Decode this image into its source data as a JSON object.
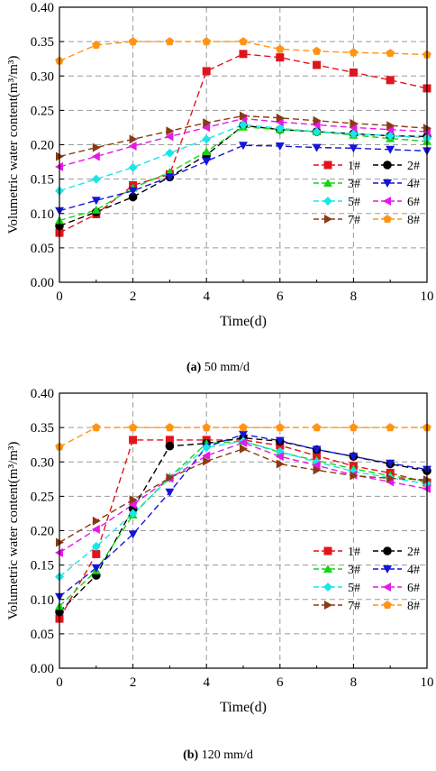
{
  "charts": [
    {
      "caption_letter": "(a)",
      "caption_text": " 50 mm/d",
      "chart_data": {
        "type": "line",
        "title": "",
        "xlabel": "Time(d)",
        "ylabel": "Volumetric water content(m³/m³)",
        "xlim": [
          0,
          10
        ],
        "ylim": [
          0,
          0.4
        ],
        "xticks": [
          "0",
          "2",
          "4",
          "6",
          "8",
          "10"
        ],
        "yticks": [
          "0.00",
          "0.05",
          "0.10",
          "0.15",
          "0.20",
          "0.25",
          "0.30",
          "0.35",
          "0.40"
        ],
        "grid": true,
        "legend_position": "bottom-right",
        "x": [
          0,
          1,
          2,
          3,
          4,
          5,
          6,
          7,
          8,
          9,
          10
        ],
        "series": [
          {
            "name": "1#",
            "color": "#e0141e",
            "marker": "square",
            "values": [
              0.072,
              0.099,
              0.141,
              0.157,
              0.307,
              0.332,
              0.327,
              0.316,
              0.305,
              0.294,
              0.282
            ]
          },
          {
            "name": "2#",
            "color": "#000000",
            "marker": "circle",
            "values": [
              0.082,
              0.102,
              0.124,
              0.153,
              0.185,
              0.228,
              0.222,
              0.219,
              0.216,
              0.213,
              0.212
            ]
          },
          {
            "name": "3#",
            "color": "#15d415",
            "marker": "triangle-up",
            "values": [
              0.09,
              0.105,
              0.137,
              0.16,
              0.19,
              0.226,
              0.222,
              0.219,
              0.214,
              0.209,
              0.205
            ]
          },
          {
            "name": "4#",
            "color": "#1515d8",
            "marker": "triangle-down",
            "values": [
              0.104,
              0.119,
              0.133,
              0.153,
              0.176,
              0.199,
              0.198,
              0.196,
              0.195,
              0.193,
              0.191
            ]
          },
          {
            "name": "5#",
            "color": "#19e6e6",
            "marker": "diamond",
            "values": [
              0.133,
              0.15,
              0.167,
              0.188,
              0.208,
              0.229,
              0.224,
              0.219,
              0.216,
              0.213,
              0.21
            ]
          },
          {
            "name": "6#",
            "color": "#e619e6",
            "marker": "triangle-left",
            "values": [
              0.168,
              0.183,
              0.198,
              0.212,
              0.225,
              0.238,
              0.233,
              0.229,
              0.225,
              0.222,
              0.219
            ]
          },
          {
            "name": "7#",
            "color": "#8b3a12",
            "marker": "triangle-right",
            "values": [
              0.183,
              0.196,
              0.208,
              0.22,
              0.232,
              0.242,
              0.239,
              0.235,
              0.231,
              0.228,
              0.224
            ]
          },
          {
            "name": "8#",
            "color": "#ff9414",
            "marker": "pentagon",
            "values": [
              0.322,
              0.345,
              0.35,
              0.35,
              0.35,
              0.35,
              0.339,
              0.336,
              0.334,
              0.333,
              0.331
            ]
          }
        ]
      }
    },
    {
      "caption_letter": "(b)",
      "caption_text": " 120 mm/d",
      "chart_data": {
        "type": "line",
        "title": "",
        "xlabel": "Time(d)",
        "ylabel": "Volumetric water content(m³/m³)",
        "xlim": [
          0,
          10
        ],
        "ylim": [
          0,
          0.4
        ],
        "xticks": [
          "0",
          "2",
          "4",
          "6",
          "8",
          "10"
        ],
        "yticks": [
          "0.00",
          "0.05",
          "0.10",
          "0.15",
          "0.20",
          "0.25",
          "0.30",
          "0.35",
          "0.40"
        ],
        "grid": true,
        "legend_position": "bottom-right",
        "x": [
          0,
          1,
          2,
          3,
          4,
          5,
          6,
          7,
          8,
          9,
          10
        ],
        "series": [
          {
            "name": "1#",
            "color": "#e0141e",
            "marker": "square",
            "values": [
              0.072,
              0.166,
              0.332,
              0.332,
              0.332,
              0.332,
              0.324,
              0.309,
              0.294,
              0.284,
              0.27
            ]
          },
          {
            "name": "2#",
            "color": "#000000",
            "marker": "circle",
            "values": [
              0.082,
              0.135,
              0.232,
              0.323,
              0.327,
              0.335,
              0.33,
              0.318,
              0.308,
              0.297,
              0.287
            ]
          },
          {
            "name": "3#",
            "color": "#15d415",
            "marker": "triangle-up",
            "values": [
              0.09,
              0.142,
              0.223,
              0.278,
              0.327,
              0.33,
              0.314,
              0.302,
              0.29,
              0.28,
              0.272
            ]
          },
          {
            "name": "4#",
            "color": "#1515d8",
            "marker": "triangle-down",
            "values": [
              0.104,
              0.146,
              0.195,
              0.256,
              0.322,
              0.34,
              0.331,
              0.318,
              0.308,
              0.298,
              0.289
            ]
          },
          {
            "name": "5#",
            "color": "#19e6e6",
            "marker": "diamond",
            "values": [
              0.133,
              0.177,
              0.225,
              0.276,
              0.321,
              0.33,
              0.315,
              0.3,
              0.286,
              0.277,
              0.268
            ]
          },
          {
            "name": "6#",
            "color": "#e619e6",
            "marker": "triangle-left",
            "values": [
              0.168,
              0.202,
              0.238,
              0.276,
              0.309,
              0.328,
              0.308,
              0.295,
              0.281,
              0.271,
              0.261
            ]
          },
          {
            "name": "7#",
            "color": "#8b3a12",
            "marker": "triangle-right",
            "values": [
              0.183,
              0.214,
              0.245,
              0.277,
              0.301,
              0.319,
              0.297,
              0.288,
              0.28,
              0.276,
              0.274
            ]
          },
          {
            "name": "8#",
            "color": "#ff9414",
            "marker": "pentagon",
            "values": [
              0.322,
              0.35,
              0.35,
              0.35,
              0.35,
              0.35,
              0.35,
              0.35,
              0.35,
              0.35,
              0.35
            ]
          }
        ]
      }
    }
  ]
}
